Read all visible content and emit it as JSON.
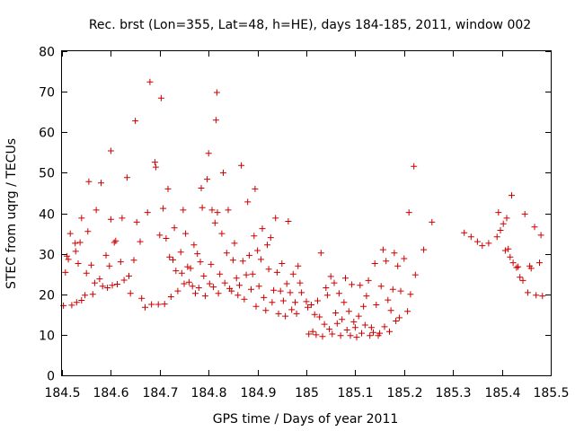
{
  "chart_data": {
    "type": "scatter",
    "title": "Rec. brst (Lon=355, Lat=48, h=HE), days 184-185, 2011, window 002",
    "xlabel": "GPS time / Days of year 2011",
    "ylabel": "STEC from uqrg / TECUs",
    "xlim": [
      184.5,
      185.5
    ],
    "ylim": [
      0,
      80
    ],
    "x_ticks": [
      184.5,
      184.6,
      184.7,
      184.8,
      184.9,
      185.0,
      185.1,
      185.2,
      185.3,
      185.4,
      185.5
    ],
    "x_tick_labels": [
      "184.5",
      "184.6",
      "184.7",
      "184.8",
      "184.9",
      "185",
      "185.1",
      "185.2",
      "185.3",
      "185.4",
      "185.5"
    ],
    "y_ticks": [
      0,
      10,
      20,
      30,
      40,
      50,
      60,
      70,
      80
    ],
    "y_tick_labels": [
      "0",
      "10",
      "20",
      "30",
      "40",
      "50",
      "60",
      "70",
      "80"
    ],
    "grid": false,
    "marker": "plus",
    "colors": {
      "points": "#cc0000",
      "axes": "#000000",
      "background": "#ffffff"
    },
    "series": [
      {
        "name": "STEC",
        "points": [
          [
            184.503,
            17.2
          ],
          [
            184.507,
            25.4
          ],
          [
            184.51,
            29.4
          ],
          [
            184.513,
            28.6
          ],
          [
            184.517,
            35.0
          ],
          [
            184.52,
            17.3
          ],
          [
            184.527,
            32.6
          ],
          [
            184.528,
            30.6
          ],
          [
            184.53,
            18.0
          ],
          [
            184.533,
            27.6
          ],
          [
            184.537,
            32.8
          ],
          [
            184.54,
            18.5
          ],
          [
            184.54,
            38.8
          ],
          [
            184.547,
            19.8
          ],
          [
            184.55,
            25.2
          ],
          [
            184.553,
            35.5
          ],
          [
            184.555,
            47.8
          ],
          [
            184.56,
            27.2
          ],
          [
            184.563,
            20.0
          ],
          [
            184.567,
            22.8
          ],
          [
            184.57,
            40.8
          ],
          [
            184.577,
            23.8
          ],
          [
            184.58,
            47.5
          ],
          [
            184.583,
            22.0
          ],
          [
            184.59,
            29.6
          ],
          [
            184.593,
            21.6
          ],
          [
            184.597,
            27.0
          ],
          [
            184.6,
            38.5
          ],
          [
            184.6,
            55.4
          ],
          [
            184.603,
            22.2
          ],
          [
            184.607,
            32.8
          ],
          [
            184.61,
            33.2
          ],
          [
            184.613,
            22.5
          ],
          [
            184.62,
            28.0
          ],
          [
            184.623,
            38.8
          ],
          [
            184.627,
            23.5
          ],
          [
            184.633,
            48.8
          ],
          [
            184.637,
            24.5
          ],
          [
            184.64,
            20.2
          ],
          [
            184.647,
            28.4
          ],
          [
            184.65,
            62.8
          ],
          [
            184.653,
            37.8
          ],
          [
            184.66,
            33.0
          ],
          [
            184.663,
            19.0
          ],
          [
            184.67,
            16.8
          ],
          [
            184.675,
            40.2
          ],
          [
            184.68,
            72.4
          ],
          [
            184.683,
            17.5
          ],
          [
            184.69,
            52.6
          ],
          [
            184.692,
            51.4
          ],
          [
            184.697,
            17.5
          ],
          [
            184.7,
            34.6
          ],
          [
            184.703,
            68.4
          ],
          [
            184.707,
            41.2
          ],
          [
            184.71,
            17.6
          ],
          [
            184.713,
            33.8
          ],
          [
            184.717,
            46.0
          ],
          [
            184.72,
            29.2
          ],
          [
            184.723,
            19.4
          ],
          [
            184.727,
            28.5
          ],
          [
            184.73,
            36.4
          ],
          [
            184.733,
            25.8
          ],
          [
            184.737,
            20.8
          ],
          [
            184.743,
            30.4
          ],
          [
            184.745,
            25.2
          ],
          [
            184.748,
            40.8
          ],
          [
            184.75,
            22.6
          ],
          [
            184.753,
            35.0
          ],
          [
            184.757,
            26.8
          ],
          [
            184.76,
            23.0
          ],
          [
            184.763,
            26.4
          ],
          [
            184.767,
            22.0
          ],
          [
            184.77,
            32.2
          ],
          [
            184.773,
            20.2
          ],
          [
            184.777,
            30.0
          ],
          [
            184.78,
            21.6
          ],
          [
            184.783,
            28.0
          ],
          [
            184.785,
            46.2
          ],
          [
            184.787,
            41.4
          ],
          [
            184.79,
            24.5
          ],
          [
            184.793,
            19.6
          ],
          [
            184.797,
            48.4
          ],
          [
            184.8,
            54.8
          ],
          [
            184.802,
            22.6
          ],
          [
            184.805,
            27.4
          ],
          [
            184.807,
            40.8
          ],
          [
            184.81,
            21.8
          ],
          [
            184.813,
            37.6
          ],
          [
            184.815,
            63.0
          ],
          [
            184.817,
            69.8
          ],
          [
            184.818,
            40.2
          ],
          [
            184.82,
            20.2
          ],
          [
            184.823,
            25.0
          ],
          [
            184.827,
            35.0
          ],
          [
            184.83,
            50.0
          ],
          [
            184.833,
            22.8
          ],
          [
            184.837,
            30.2
          ],
          [
            184.84,
            40.8
          ],
          [
            184.843,
            21.4
          ],
          [
            184.847,
            20.8
          ],
          [
            184.85,
            28.4
          ],
          [
            184.853,
            32.6
          ],
          [
            184.857,
            24.0
          ],
          [
            184.86,
            19.8
          ],
          [
            184.863,
            22.2
          ],
          [
            184.867,
            51.8
          ],
          [
            184.87,
            28.2
          ],
          [
            184.873,
            18.8
          ],
          [
            184.877,
            24.8
          ],
          [
            184.88,
            42.8
          ],
          [
            184.883,
            29.6
          ],
          [
            184.887,
            21.2
          ],
          [
            184.89,
            25.0
          ],
          [
            184.893,
            34.4
          ],
          [
            184.895,
            46.0
          ],
          [
            184.897,
            17.0
          ],
          [
            184.9,
            30.8
          ],
          [
            184.903,
            22.0
          ],
          [
            184.907,
            28.6
          ],
          [
            184.91,
            36.2
          ],
          [
            184.913,
            19.2
          ],
          [
            184.917,
            16.0
          ],
          [
            184.92,
            32.2
          ],
          [
            184.923,
            26.2
          ],
          [
            184.927,
            34.0
          ],
          [
            184.93,
            18.0
          ],
          [
            184.933,
            21.0
          ],
          [
            184.937,
            38.8
          ],
          [
            184.94,
            25.4
          ],
          [
            184.943,
            15.2
          ],
          [
            184.947,
            20.8
          ],
          [
            184.95,
            27.6
          ],
          [
            184.953,
            18.4
          ],
          [
            184.957,
            14.6
          ],
          [
            184.96,
            22.6
          ],
          [
            184.963,
            38.0
          ],
          [
            184.967,
            20.4
          ],
          [
            184.97,
            16.2
          ],
          [
            184.973,
            25.0
          ],
          [
            184.977,
            18.0
          ],
          [
            184.98,
            15.2
          ],
          [
            184.983,
            27.0
          ],
          [
            184.987,
            22.8
          ],
          [
            184.99,
            20.4
          ],
          [
            185.0,
            18.2
          ],
          [
            185.003,
            16.8
          ],
          [
            185.005,
            10.2
          ],
          [
            185.01,
            17.4
          ],
          [
            185.013,
            10.8
          ],
          [
            185.017,
            15.0
          ],
          [
            185.02,
            10.0
          ],
          [
            185.023,
            18.4
          ],
          [
            185.027,
            14.4
          ],
          [
            185.03,
            30.2
          ],
          [
            185.033,
            9.6
          ],
          [
            185.037,
            12.6
          ],
          [
            185.04,
            21.6
          ],
          [
            185.043,
            19.8
          ],
          [
            185.047,
            11.4
          ],
          [
            185.05,
            24.4
          ],
          [
            185.053,
            10.2
          ],
          [
            185.057,
            22.8
          ],
          [
            185.06,
            15.4
          ],
          [
            185.063,
            12.8
          ],
          [
            185.067,
            20.2
          ],
          [
            185.07,
            9.8
          ],
          [
            185.073,
            13.8
          ],
          [
            185.077,
            18.0
          ],
          [
            185.08,
            24.0
          ],
          [
            185.083,
            11.2
          ],
          [
            185.087,
            15.8
          ],
          [
            185.09,
            9.8
          ],
          [
            185.093,
            22.4
          ],
          [
            185.097,
            13.2
          ],
          [
            185.1,
            11.8
          ],
          [
            185.103,
            9.4
          ],
          [
            185.107,
            14.6
          ],
          [
            185.11,
            22.2
          ],
          [
            185.113,
            10.4
          ],
          [
            185.117,
            17.0
          ],
          [
            185.12,
            12.4
          ],
          [
            185.123,
            19.6
          ],
          [
            185.127,
            23.4
          ],
          [
            185.13,
            9.8
          ],
          [
            185.133,
            11.8
          ],
          [
            185.137,
            10.6
          ],
          [
            185.14,
            27.6
          ],
          [
            185.143,
            17.4
          ],
          [
            185.147,
            9.8
          ],
          [
            185.15,
            10.4
          ],
          [
            185.153,
            22.0
          ],
          [
            185.157,
            31.0
          ],
          [
            185.16,
            12.0
          ],
          [
            185.163,
            28.2
          ],
          [
            185.167,
            18.6
          ],
          [
            185.17,
            10.8
          ],
          [
            185.173,
            16.0
          ],
          [
            185.177,
            21.2
          ],
          [
            185.18,
            30.2
          ],
          [
            185.183,
            13.4
          ],
          [
            185.187,
            27.0
          ],
          [
            185.19,
            14.2
          ],
          [
            185.193,
            20.8
          ],
          [
            185.2,
            28.8
          ],
          [
            185.207,
            15.8
          ],
          [
            185.21,
            40.2
          ],
          [
            185.213,
            20.0
          ],
          [
            185.22,
            51.6
          ],
          [
            185.223,
            24.8
          ],
          [
            185.24,
            31.0
          ],
          [
            185.257,
            37.8
          ],
          [
            185.323,
            35.2
          ],
          [
            185.337,
            34.2
          ],
          [
            185.35,
            33.0
          ],
          [
            185.36,
            32.0
          ],
          [
            185.373,
            32.6
          ],
          [
            185.39,
            34.2
          ],
          [
            185.393,
            40.2
          ],
          [
            185.397,
            35.8
          ],
          [
            185.403,
            37.4
          ],
          [
            185.407,
            30.8
          ],
          [
            185.41,
            38.8
          ],
          [
            185.413,
            31.2
          ],
          [
            185.417,
            29.2
          ],
          [
            185.42,
            44.4
          ],
          [
            185.423,
            27.8
          ],
          [
            185.43,
            26.6
          ],
          [
            185.433,
            26.8
          ],
          [
            185.437,
            24.2
          ],
          [
            185.443,
            23.4
          ],
          [
            185.447,
            39.8
          ],
          [
            185.453,
            20.4
          ],
          [
            185.457,
            27.0
          ],
          [
            185.46,
            26.4
          ],
          [
            185.467,
            36.6
          ],
          [
            185.47,
            19.8
          ],
          [
            185.477,
            27.8
          ],
          [
            185.48,
            34.6
          ],
          [
            185.483,
            19.6
          ]
        ]
      }
    ]
  }
}
